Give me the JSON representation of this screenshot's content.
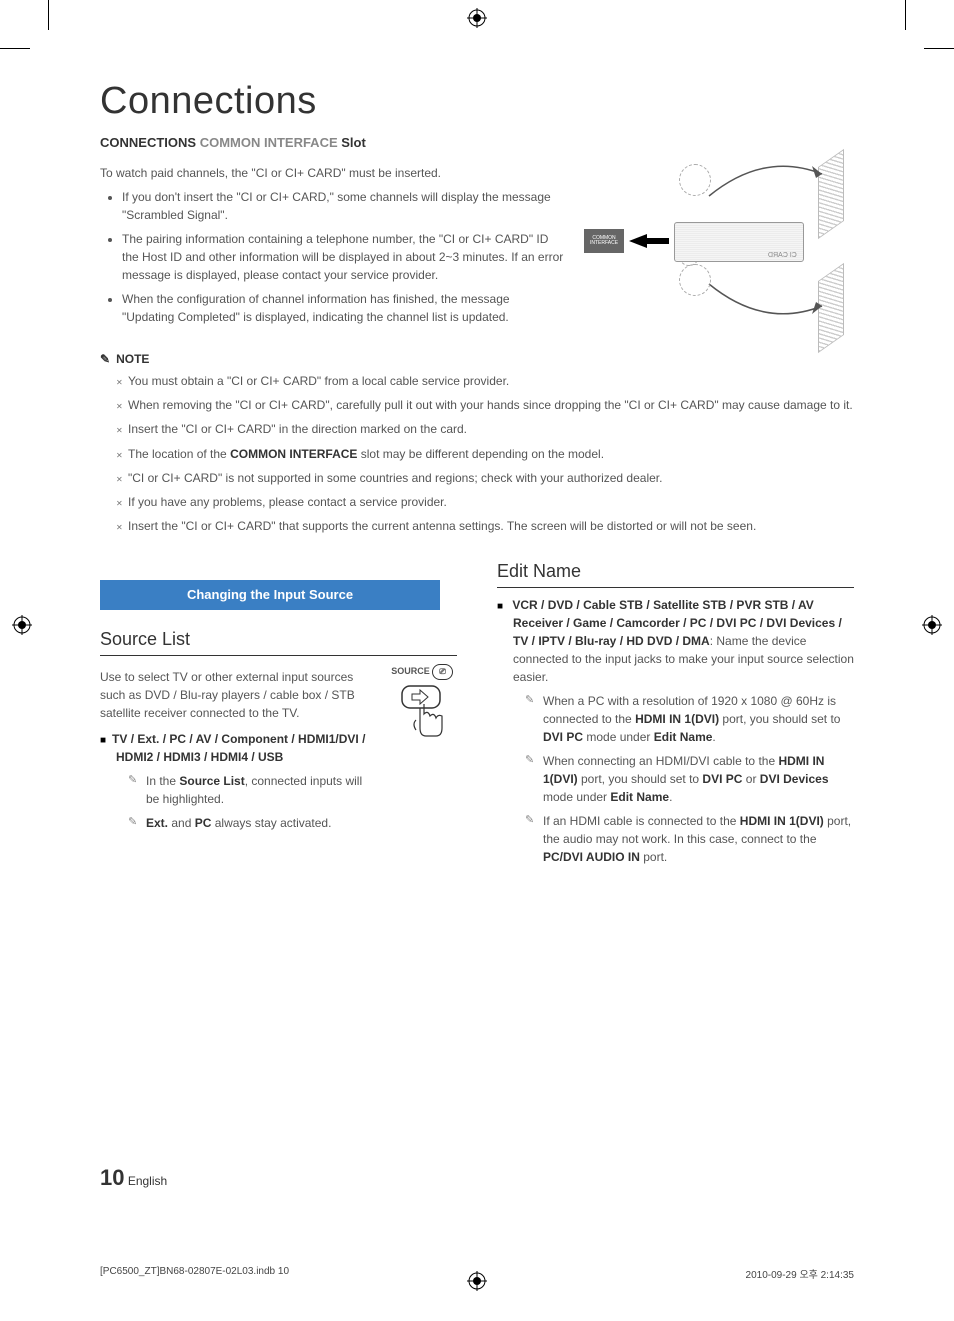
{
  "title": "Connections",
  "subheading_parts": {
    "a": "CONNECTIONS",
    "b": "COMMON INTERFACE",
    "c": "Slot"
  },
  "intro": "To watch paid channels, the \"CI or CI+ CARD\" must be inserted.",
  "intro_bullets": [
    "If you don't insert the \"CI or CI+ CARD,\" some channels will display the message \"Scrambled Signal\".",
    "The pairing information containing a telephone number, the \"CI or CI+ CARD\" ID the Host ID and other information will be displayed in about 2~3 minutes. If an error message is displayed, please contact your service provider.",
    "When the configuration of channel information has finished, the message \"Updating Completed\" is displayed, indicating the channel list is updated."
  ],
  "ci_label": "COMMON INTERFACE",
  "ci_card_label": "CI CARD",
  "note_label": "NOTE",
  "notes": [
    "You must obtain a \"CI or CI+ CARD\" from a local cable service provider.",
    "When removing the \"CI or CI+ CARD\", carefully pull it out with your hands since dropping the \"CI or CI+ CARD\" may cause damage to it.",
    "Insert the \"CI or CI+ CARD\" in the direction marked on the card.",
    "<span>The location of the <b class=\"strong\">COMMON INTERFACE</b> slot may be different depending on the model.</span>",
    "\"CI or CI+ CARD\" is not supported in some countries and regions; check with your authorized dealer.",
    "If you have any problems, please contact a service provider.",
    "Insert the \"CI or CI+ CARD\" that supports the current antenna settings. The screen will be distorted or will not be seen."
  ],
  "blue_bar": "Changing the Input Source",
  "left_col": {
    "heading": "Source List",
    "para": "Use to select TV or other external input sources such as DVD / Blu-ray players / cable box / STB satellite receiver connected to the TV.",
    "sq_item": "TV / Ext. / PC / AV / Component / HDMI1/DVI / HDMI2 / HDMI3 / HDMI4 / USB",
    "pencils": [
      "In the <b class=\"strong\">Source List</b>, connected inputs will be highlighted.",
      "<b class=\"strong\">Ext.</b> and <b class=\"strong\">PC</b> always stay activated."
    ],
    "source_label": "SOURCE"
  },
  "right_col": {
    "heading": "Edit Name",
    "sq_item_bold": "VCR / DVD / Cable STB / Satellite STB / PVR STB / AV Receiver / Game / Camcorder / PC / DVI PC / DVI Devices / TV / IPTV / Blu-ray / HD DVD / DMA",
    "sq_item_rest": ": Name the device connected to the input jacks to make your input source selection easier.",
    "pencils": [
      "When a PC with a resolution of 1920 x 1080 @ 60Hz is connected to the <b class=\"strong\">HDMI IN 1(DVI)</b> port, you should set to <b class=\"strong\">DVI PC</b> mode under <b class=\"strong\">Edit Name</b>.",
      "When connecting an HDMI/DVI cable to the <b class=\"strong\">HDMI IN 1(DVI)</b> port, you should set to <b class=\"strong\">DVI PC</b> or <b class=\"strong\">DVI Devices</b> mode under <b class=\"strong\">Edit Name</b>.",
      "If an HDMI cable is connected to the <b class=\"strong\">HDMI IN 1(DVI)</b> port, the audio may not work. In this case, connect to the <b class=\"strong\">PC/DVI AUDIO IN</b> port."
    ]
  },
  "footer": {
    "page": "10",
    "lang": "English"
  },
  "print_footer": {
    "left": "[PC6500_ZT]BN68-02807E-02L03.indb   10",
    "right": "2010-09-29   오후 2:14:35"
  },
  "colors": {
    "blue": "#3a7fc4"
  }
}
